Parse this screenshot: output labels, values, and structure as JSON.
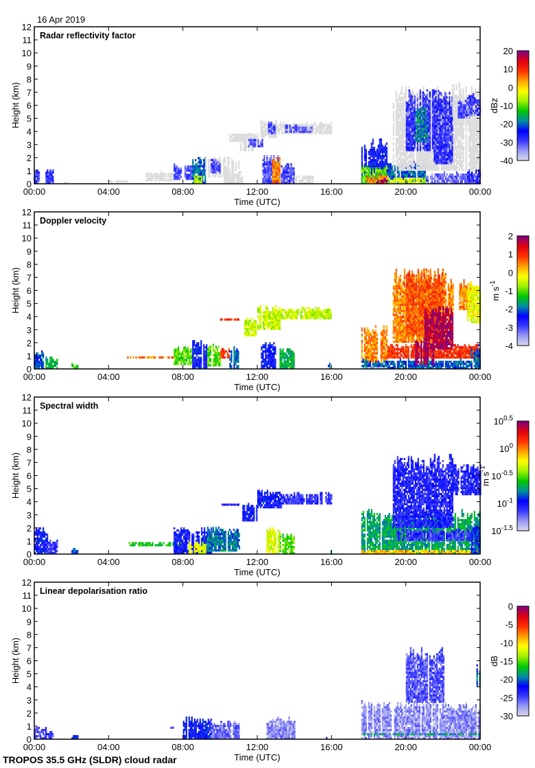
{
  "date_label": "16 Apr 2019",
  "footer": "TROPOS 35.5 GHz (SLDR) cloud radar",
  "colormap": [
    "#dcdcec",
    "#9a9af4",
    "#3a3aff",
    "#0000ff",
    "#0090a0",
    "#00c800",
    "#a0f000",
    "#ffff00",
    "#ffa000",
    "#ff3000",
    "#e00010",
    "#800080"
  ],
  "below_range_color": "#dcdcdc",
  "chart_data": [
    {
      "type": "heatmap",
      "title": "Radar reflectivity factor",
      "xlabel": "Time (UTC)",
      "ylabel": "Height (km)",
      "xlim": [
        0,
        24
      ],
      "ylim": [
        0,
        12
      ],
      "x_ticks": [
        "00:00",
        "04:00",
        "08:00",
        "12:00",
        "16:00",
        "20:00",
        "00:00"
      ],
      "y_ticks": [
        "0",
        "1",
        "2",
        "3",
        "4",
        "5",
        "6",
        "7",
        "8",
        "9",
        "10",
        "11",
        "12"
      ],
      "colorbar": {
        "range": [
          -40,
          20
        ],
        "unit": "dBz",
        "unit_sup": "",
        "ticks": [
          "20",
          "10",
          "0",
          "-10",
          "-20",
          "-30",
          "-40"
        ],
        "below_range_grey": true
      },
      "echoes_fields": [
        "t_start_h",
        "t_end_h",
        "h_bottom_km",
        "h_top_km",
        "value"
      ],
      "echoes": [
        [
          0.0,
          0.3,
          0,
          1.3,
          -30
        ],
        [
          0.6,
          1.0,
          0,
          1.3,
          -28
        ],
        [
          1.6,
          1.8,
          0,
          0.3,
          -45
        ],
        [
          4.0,
          5.0,
          0.1,
          0.3,
          -45
        ],
        [
          6.0,
          7.5,
          0.2,
          1.0,
          -45
        ],
        [
          7.5,
          8.5,
          0.3,
          1.6,
          -30
        ],
        [
          8.5,
          9.2,
          0,
          2.2,
          -20
        ],
        [
          8.6,
          9.0,
          0,
          0.8,
          -5
        ],
        [
          9.2,
          11.0,
          0.5,
          2.2,
          -45
        ],
        [
          9.5,
          10.0,
          0.8,
          2.0,
          -30
        ],
        [
          10.2,
          11.2,
          0,
          1,
          -45
        ],
        [
          10.5,
          12.0,
          3.2,
          4.0,
          -45
        ],
        [
          11.0,
          11.8,
          2.5,
          4.0,
          -45
        ],
        [
          11.5,
          12.3,
          2.8,
          3.6,
          -30
        ],
        [
          12.1,
          13.0,
          3.5,
          5.0,
          -45
        ],
        [
          12.5,
          13.0,
          3.8,
          4.8,
          -30
        ],
        [
          13.0,
          16.0,
          3.8,
          4.8,
          -45
        ],
        [
          13.5,
          15.0,
          3.9,
          4.6,
          -32
        ],
        [
          12.2,
          13.2,
          0,
          2.3,
          -30
        ],
        [
          12.8,
          13.2,
          0,
          2.2,
          5
        ],
        [
          13.2,
          14.0,
          0,
          1.7,
          -30
        ],
        [
          14.0,
          15.0,
          0,
          0.8,
          -45
        ],
        [
          17.6,
          19.0,
          0,
          3.5,
          -25
        ],
        [
          17.6,
          19.0,
          0,
          1.5,
          -10
        ],
        [
          17.9,
          19.0,
          0,
          0.8,
          5
        ],
        [
          18.4,
          19.0,
          0,
          0.5,
          18
        ],
        [
          19.0,
          21.0,
          0,
          1.8,
          -20
        ],
        [
          19.0,
          21.0,
          0,
          0.6,
          -5
        ],
        [
          21.0,
          24,
          0,
          1,
          -32
        ],
        [
          19.3,
          24,
          1,
          7.8,
          -45
        ],
        [
          20.0,
          21.5,
          2.5,
          7.5,
          -28
        ],
        [
          20.5,
          21.2,
          3.2,
          6,
          -18
        ],
        [
          21.5,
          22.5,
          1.5,
          7.5,
          -28
        ],
        [
          22.5,
          23.5,
          4.5,
          7,
          -45
        ],
        [
          22.8,
          23.4,
          5,
          6.5,
          -30
        ],
        [
          23.3,
          24,
          5.2,
          7,
          -30
        ],
        [
          23.3,
          24,
          0,
          1.2,
          -28
        ]
      ]
    },
    {
      "type": "heatmap",
      "title": "Doppler velocity",
      "xlabel": "Time (UTC)",
      "ylabel": "Height (km)",
      "xlim": [
        0,
        24
      ],
      "ylim": [
        0,
        12
      ],
      "x_ticks": [
        "00:00",
        "04:00",
        "08:00",
        "12:00",
        "16:00",
        "20:00",
        "00:00"
      ],
      "y_ticks": [
        "0",
        "1",
        "2",
        "3",
        "4",
        "5",
        "6",
        "7",
        "8",
        "9",
        "10",
        "11",
        "12"
      ],
      "colorbar": {
        "range": [
          -4,
          2
        ],
        "unit": "m s",
        "unit_sup": "-1",
        "ticks": [
          "2",
          "1",
          "0",
          "-1",
          "-2",
          "-3",
          "-4"
        ],
        "below_range_grey": false
      },
      "echoes_fields": [
        "t_start_h",
        "t_end_h",
        "h_bottom_km",
        "h_top_km",
        "value"
      ],
      "echoes": [
        [
          0,
          0.5,
          0,
          1.5,
          -2
        ],
        [
          0.6,
          1.2,
          0,
          1.0,
          -1.5
        ],
        [
          2.0,
          2.3,
          0,
          0.5,
          -1
        ],
        [
          4,
          5,
          0.1,
          0.2,
          0
        ],
        [
          5.0,
          7.5,
          0.8,
          1.0,
          0.5
        ],
        [
          7.5,
          8.5,
          0.3,
          1.8,
          -1
        ],
        [
          8.5,
          9.3,
          0,
          2.3,
          -2.5
        ],
        [
          9.3,
          10.0,
          0.2,
          2.0,
          -1
        ],
        [
          10.0,
          10.5,
          0.8,
          1.8,
          1
        ],
        [
          10.5,
          11.0,
          0,
          1.8,
          -2
        ],
        [
          10.0,
          11.0,
          3.7,
          4.0,
          1
        ],
        [
          11.3,
          12.0,
          2.5,
          4.0,
          -0.5
        ],
        [
          12.0,
          13.2,
          3.0,
          5.0,
          -0.5
        ],
        [
          12.2,
          13.0,
          0,
          2.3,
          -2.5
        ],
        [
          13.2,
          14.0,
          0,
          1.8,
          -1.5
        ],
        [
          13.2,
          16.0,
          3.8,
          4.8,
          -0.5
        ],
        [
          15.8,
          16.0,
          0,
          0.5,
          -2
        ],
        [
          17.6,
          19.0,
          0.5,
          3.5,
          0.5
        ],
        [
          17.6,
          24,
          0,
          0.8,
          -2
        ],
        [
          17.6,
          19,
          0,
          0.3,
          -3.8
        ],
        [
          19.0,
          24,
          0.8,
          2,
          1
        ],
        [
          19.3,
          22.5,
          2,
          7.8,
          0.5
        ],
        [
          20.0,
          22.0,
          2.5,
          7.8,
          0.8
        ],
        [
          21.0,
          22.5,
          1.5,
          5,
          1.8
        ],
        [
          20.5,
          21.5,
          0.3,
          2.5,
          1.8
        ],
        [
          22.5,
          23.5,
          4.5,
          7,
          0.5
        ],
        [
          23.3,
          24,
          3.5,
          7,
          -0.3
        ],
        [
          23.5,
          24,
          0,
          2,
          -2
        ]
      ]
    },
    {
      "type": "heatmap",
      "title": "Spectral width",
      "xlabel": "Time (UTC)",
      "ylabel": "Height (km)",
      "xlim": [
        0,
        24
      ],
      "ylim": [
        0,
        12
      ],
      "x_ticks": [
        "00:00",
        "04:00",
        "08:00",
        "12:00",
        "16:00",
        "20:00",
        "00:00"
      ],
      "y_ticks": [
        "0",
        "1",
        "2",
        "3",
        "4",
        "5",
        "6",
        "7",
        "8",
        "9",
        "10",
        "11",
        "12"
      ],
      "colorbar": {
        "range": [
          -1.5,
          0.5
        ],
        "scale": "log10",
        "unit": "m s",
        "unit_sup": "-1",
        "ticks": [
          "10^0.5",
          "10^0",
          "10^-0.5",
          "10^-1",
          "10^-1.5"
        ],
        "below_range_grey": false
      },
      "echoes_fields": [
        "t_start_h",
        "t_end_h",
        "h_bottom_km",
        "h_top_km",
        "log10_value"
      ],
      "echoes": [
        [
          0,
          0.8,
          0,
          2.2,
          -1.0
        ],
        [
          0.6,
          1.2,
          0,
          1.2,
          -1.1
        ],
        [
          2.0,
          2.3,
          0,
          0.5,
          -0.9
        ],
        [
          4.5,
          5.5,
          0.1,
          0.2,
          -1.4
        ],
        [
          5.0,
          8.0,
          0.6,
          1.0,
          -0.6
        ],
        [
          7.5,
          9.5,
          0,
          2.2,
          -1.0
        ],
        [
          8.3,
          9.2,
          0,
          1,
          -0.3
        ],
        [
          9.3,
          11,
          0.2,
          2.2,
          -0.8
        ],
        [
          10.0,
          11.0,
          3.7,
          4.0,
          -1.1
        ],
        [
          11.2,
          12.0,
          2.5,
          4.0,
          -1.0
        ],
        [
          12.0,
          13.3,
          3.5,
          5.0,
          -1.0
        ],
        [
          12.5,
          13.2,
          0,
          2.3,
          -0.3
        ],
        [
          13.2,
          14.0,
          0,
          1.8,
          -0.5
        ],
        [
          13.3,
          16.0,
          3.8,
          4.8,
          -1.1
        ],
        [
          15.8,
          16.0,
          0,
          0.5,
          -0.7
        ],
        [
          17.6,
          24,
          0,
          3.5,
          -0.7
        ],
        [
          17.6,
          24,
          0,
          0.4,
          -0.1
        ],
        [
          19.5,
          24,
          1,
          2,
          -1.1
        ],
        [
          19.3,
          22.5,
          2,
          7.8,
          -1.05
        ],
        [
          22.5,
          24,
          4.5,
          7,
          -1.05
        ],
        [
          23.5,
          24,
          0,
          2.3,
          -0.9
        ]
      ]
    },
    {
      "type": "heatmap",
      "title": "Linear depolarisation ratio",
      "xlabel": "Time (UTC)",
      "ylabel": "Height (km)",
      "xlim": [
        0,
        24
      ],
      "ylim": [
        0,
        12
      ],
      "x_ticks": [
        "00:00",
        "04:00",
        "08:00",
        "12:00",
        "16:00",
        "20:00",
        "00:00"
      ],
      "y_ticks": [
        "0",
        "1",
        "2",
        "3",
        "4",
        "5",
        "6",
        "7",
        "8",
        "9",
        "10",
        "11",
        "12"
      ],
      "colorbar": {
        "range": [
          -30,
          0
        ],
        "unit": "dB",
        "unit_sup": "",
        "ticks": [
          "0",
          "-5",
          "-10",
          "-15",
          "-20",
          "-25",
          "-30"
        ],
        "below_range_grey": false
      },
      "echoes_fields": [
        "t_start_h",
        "t_end_h",
        "h_bottom_km",
        "h_top_km",
        "value"
      ],
      "echoes": [
        [
          0,
          0.6,
          0,
          1,
          -25
        ],
        [
          0.6,
          1.0,
          0,
          0.7,
          -24
        ],
        [
          2.0,
          2.3,
          0,
          0.4,
          -22
        ],
        [
          7.3,
          7.5,
          0.8,
          1.0,
          -26
        ],
        [
          8.0,
          9.5,
          0,
          1.8,
          -22
        ],
        [
          9.5,
          11,
          0,
          1.5,
          -26
        ],
        [
          12.5,
          14,
          0,
          1.8,
          -27
        ],
        [
          15.7,
          15.8,
          0,
          0.3,
          -22
        ],
        [
          17.6,
          24,
          0,
          3,
          -27
        ],
        [
          17.6,
          24,
          0.3,
          0.5,
          -18
        ],
        [
          20.0,
          22.0,
          2.8,
          7.2,
          -25
        ],
        [
          23.8,
          24,
          4,
          6,
          -20
        ]
      ]
    }
  ]
}
